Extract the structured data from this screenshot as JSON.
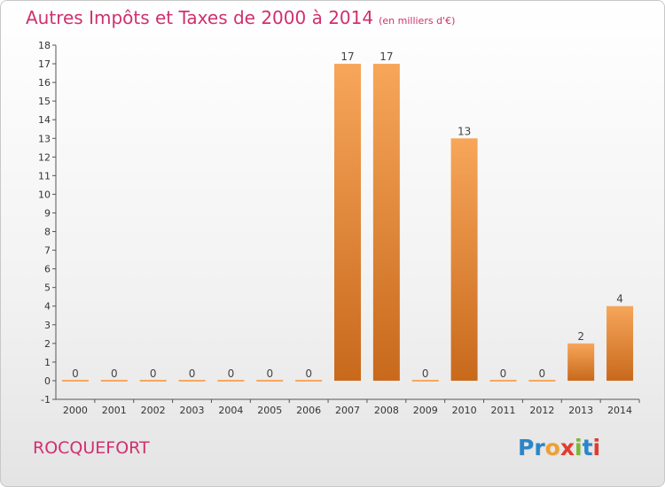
{
  "header": {
    "title": "Autres Impôts et Taxes de 2000 à 2014",
    "unit": "(en milliers d'€)"
  },
  "footer": {
    "town": "ROCQUEFORT",
    "logo_letters": [
      "P",
      "r",
      "o",
      "x",
      "i",
      "t",
      "i"
    ],
    "logo_colors": [
      "#2a86c8",
      "#2a86c8",
      "#f0a030",
      "#e23b2e",
      "#7ab834",
      "#2a86c8",
      "#e23b2e"
    ]
  },
  "colors": {
    "accent": "#d0306e",
    "bar_light": "#f7a65a",
    "bar_dark": "#c8691c",
    "axis": "#555555"
  },
  "chart_data": {
    "type": "bar",
    "categories": [
      "2000",
      "2001",
      "2002",
      "2003",
      "2004",
      "2005",
      "2006",
      "2007",
      "2008",
      "2009",
      "2010",
      "2011",
      "2012",
      "2013",
      "2014"
    ],
    "values": [
      0,
      0,
      0,
      0,
      0,
      0,
      0,
      17,
      17,
      0,
      13,
      0,
      0,
      2,
      4
    ],
    "data_labels": [
      "0",
      "0",
      "0",
      "0",
      "0",
      "0",
      "0",
      "17",
      "17",
      "0",
      "13",
      "0",
      "0",
      "2",
      "4"
    ],
    "yticks": [
      "-1",
      "0",
      "1",
      "2",
      "3",
      "4",
      "5",
      "6",
      "7",
      "8",
      "9",
      "10",
      "11",
      "12",
      "13",
      "14",
      "15",
      "16",
      "17",
      "18"
    ],
    "ylim": [
      -1,
      18
    ],
    "grid": false,
    "legend": "none"
  }
}
